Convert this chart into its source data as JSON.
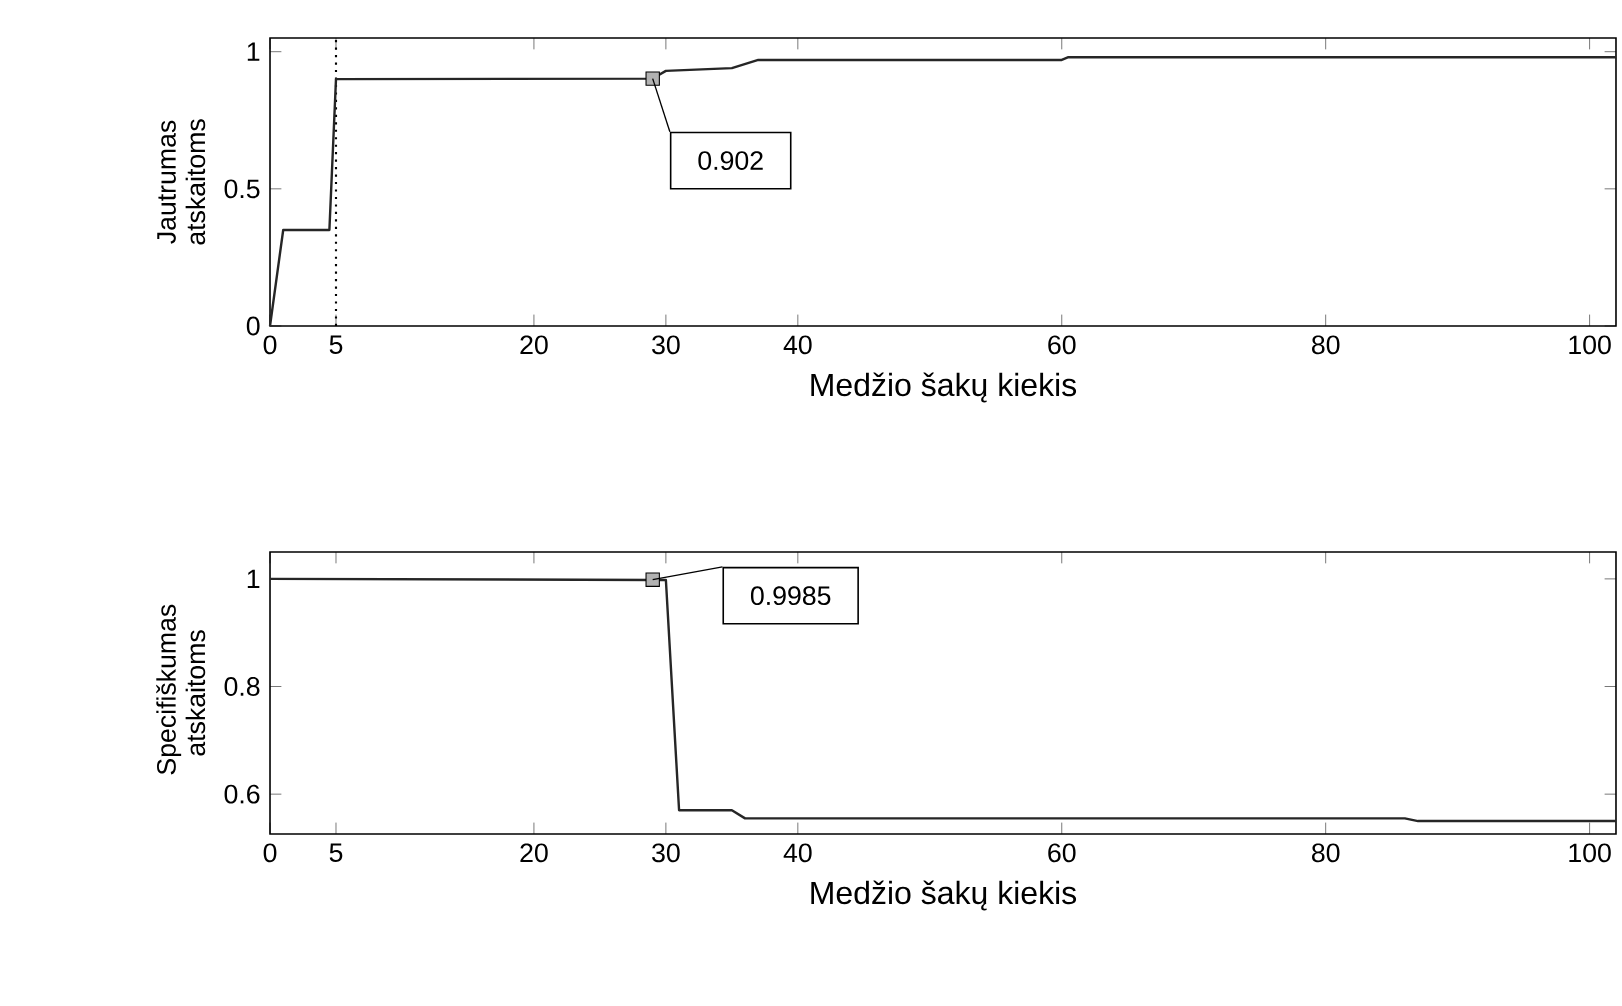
{
  "chart_data": [
    {
      "type": "line",
      "xlabel": "Medžio šakų kiekis",
      "ylabel": "Jautrumas atskaitoms",
      "color": "#262626",
      "x": [
        0,
        1,
        4.5,
        5,
        29,
        30,
        35,
        37,
        60,
        60.5,
        102
      ],
      "values": [
        0,
        0.35,
        0.35,
        0.9,
        0.902,
        0.93,
        0.94,
        0.97,
        0.97,
        0.98,
        0.98
      ],
      "xlim": [
        0,
        102
      ],
      "ylim": [
        0,
        1.05
      ],
      "xticks": [
        0,
        5,
        20,
        30,
        40,
        60,
        80,
        100
      ],
      "yticks": [
        0,
        0.5,
        1
      ],
      "ref_lines": [
        {
          "axis": "x",
          "value": 5,
          "line_style": "dotted"
        }
      ],
      "annotations": [
        {
          "text": "0.902",
          "x": 29,
          "y": 0.902
        }
      ]
    },
    {
      "type": "line",
      "xlabel": "Medžio šakų kiekis",
      "ylabel": "Specifiškumas atskaitoms",
      "color": "#262626",
      "x": [
        0,
        29,
        30,
        31,
        35,
        36,
        86,
        87,
        102
      ],
      "values": [
        1,
        0.998,
        0.998,
        0.57,
        0.57,
        0.555,
        0.555,
        0.55,
        0.55
      ],
      "xlim": [
        0,
        102
      ],
      "ylim": [
        0.526,
        1.05
      ],
      "xticks": [
        0,
        5,
        20,
        30,
        40,
        60,
        80,
        100
      ],
      "yticks": [
        0.6,
        0.8,
        1
      ],
      "annotations": [
        {
          "text": "0.9985",
          "x": 29,
          "y": 0.9985
        }
      ]
    }
  ]
}
